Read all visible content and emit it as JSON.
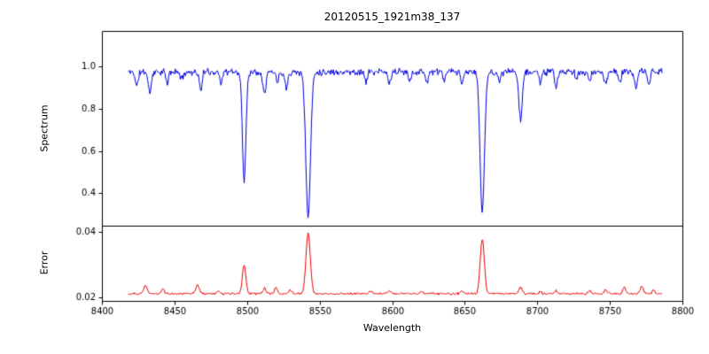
{
  "figure": {
    "title": "20120515_1921m38_137",
    "xlabel": "Wavelength",
    "background": "#ffffff"
  },
  "chart_data": {
    "type": "line",
    "title": "20120515_1921m38_137",
    "xlabel": "Wavelength",
    "x_range": [
      8400,
      8800
    ],
    "x_ticks": [
      8400,
      8450,
      8500,
      8550,
      8600,
      8650,
      8700,
      8750,
      8800
    ],
    "x_tick_labels": [
      "8400",
      "8450",
      "8500",
      "8550",
      "8600",
      "8650",
      "8700",
      "8750",
      "8800"
    ],
    "grid": false,
    "legend": "none",
    "subplots": [
      {
        "name": "spectrum",
        "ylabel": "Spectrum",
        "ylim": [
          0.245,
          1.17
        ],
        "y_ticks": [
          0.4,
          0.6,
          0.8,
          1.0
        ],
        "y_tick_labels": [
          "0.4",
          "0.6",
          "0.8",
          "1.0"
        ],
        "color": "#0000dd",
        "series": {
          "description": "Normalized stellar spectrum: continuum near 0.97 with noise; Ca II triplet absorption lines at 8498, 8542, 8662 plus weaker lines",
          "x_start": 8418,
          "x_end": 8786,
          "step": 0.5,
          "baseline": 0.975,
          "noise_amp": 0.02,
          "seed": 11,
          "features": [
            {
              "center": 8498.0,
              "amp": -0.52,
              "sigma": 1.2
            },
            {
              "center": 8542.1,
              "amp": -0.69,
              "sigma": 1.6
            },
            {
              "center": 8662.1,
              "amp": -0.67,
              "sigma": 1.5
            },
            {
              "center": 8688.5,
              "amp": -0.22,
              "sigma": 1.2
            },
            {
              "center": 8424.0,
              "amp": -0.07,
              "sigma": 0.9
            },
            {
              "center": 8433.0,
              "amp": -0.1,
              "sigma": 1.0
            },
            {
              "center": 8445.0,
              "amp": -0.06,
              "sigma": 0.8
            },
            {
              "center": 8455.0,
              "amp": -0.04,
              "sigma": 0.8
            },
            {
              "center": 8468.0,
              "amp": -0.09,
              "sigma": 0.9
            },
            {
              "center": 8482.0,
              "amp": -0.05,
              "sigma": 0.8
            },
            {
              "center": 8512.0,
              "amp": -0.1,
              "sigma": 1.0
            },
            {
              "center": 8521.0,
              "amp": -0.05,
              "sigma": 0.8
            },
            {
              "center": 8527.0,
              "amp": -0.08,
              "sigma": 0.9
            },
            {
              "center": 8582.0,
              "amp": -0.05,
              "sigma": 0.8
            },
            {
              "center": 8598.0,
              "amp": -0.06,
              "sigma": 0.9
            },
            {
              "center": 8612.0,
              "amp": -0.04,
              "sigma": 0.8
            },
            {
              "center": 8624.0,
              "amp": -0.05,
              "sigma": 0.8
            },
            {
              "center": 8636.0,
              "amp": -0.04,
              "sigma": 0.8
            },
            {
              "center": 8648.0,
              "amp": -0.06,
              "sigma": 0.9
            },
            {
              "center": 8674.0,
              "amp": -0.05,
              "sigma": 0.8
            },
            {
              "center": 8702.0,
              "amp": -0.05,
              "sigma": 0.8
            },
            {
              "center": 8713.0,
              "amp": -0.07,
              "sigma": 0.9
            },
            {
              "center": 8727.0,
              "amp": -0.04,
              "sigma": 0.8
            },
            {
              "center": 8736.0,
              "amp": -0.05,
              "sigma": 0.8
            },
            {
              "center": 8747.0,
              "amp": -0.06,
              "sigma": 0.9
            },
            {
              "center": 8757.0,
              "amp": -0.05,
              "sigma": 0.8
            },
            {
              "center": 8768.0,
              "amp": -0.08,
              "sigma": 0.9
            },
            {
              "center": 8777.0,
              "amp": -0.06,
              "sigma": 0.8
            }
          ]
        }
      },
      {
        "name": "error",
        "ylabel": "Error",
        "ylim": [
          0.019,
          0.042
        ],
        "y_ticks": [
          0.02,
          0.04
        ],
        "y_tick_labels": [
          "0.02",
          "0.04"
        ],
        "color": "#ee0000",
        "series": {
          "description": "Error spectrum: baseline near 0.021 with spikes at the absorption-line wavelengths",
          "x_start": 8418,
          "x_end": 8786,
          "step": 0.5,
          "baseline": 0.0212,
          "noise_amp": 0.0004,
          "seed": 29,
          "features": [
            {
              "center": 8498.0,
              "amp": 0.009,
              "sigma": 1.2
            },
            {
              "center": 8542.1,
              "amp": 0.0185,
              "sigma": 1.5
            },
            {
              "center": 8662.1,
              "amp": 0.0168,
              "sigma": 1.4
            },
            {
              "center": 8430.0,
              "amp": 0.0026,
              "sigma": 1.2
            },
            {
              "center": 8442.0,
              "amp": 0.0014,
              "sigma": 1.0
            },
            {
              "center": 8466.0,
              "amp": 0.0026,
              "sigma": 1.2
            },
            {
              "center": 8480.0,
              "amp": 0.001,
              "sigma": 1.0
            },
            {
              "center": 8512.0,
              "amp": 0.0016,
              "sigma": 1.0
            },
            {
              "center": 8520.0,
              "amp": 0.002,
              "sigma": 1.0
            },
            {
              "center": 8530.0,
              "amp": 0.0012,
              "sigma": 0.9
            },
            {
              "center": 8585.0,
              "amp": 0.0008,
              "sigma": 1.0
            },
            {
              "center": 8598.0,
              "amp": 0.001,
              "sigma": 1.0
            },
            {
              "center": 8620.0,
              "amp": 0.0007,
              "sigma": 1.0
            },
            {
              "center": 8648.0,
              "amp": 0.0009,
              "sigma": 1.0
            },
            {
              "center": 8688.5,
              "amp": 0.002,
              "sigma": 1.1
            },
            {
              "center": 8702.0,
              "amp": 0.0008,
              "sigma": 0.9
            },
            {
              "center": 8713.0,
              "amp": 0.001,
              "sigma": 1.0
            },
            {
              "center": 8736.0,
              "amp": 0.0009,
              "sigma": 1.0
            },
            {
              "center": 8747.0,
              "amp": 0.0012,
              "sigma": 1.0
            },
            {
              "center": 8760.0,
              "amp": 0.0018,
              "sigma": 1.0
            },
            {
              "center": 8772.0,
              "amp": 0.0022,
              "sigma": 1.1
            },
            {
              "center": 8780.0,
              "amp": 0.0012,
              "sigma": 0.9
            }
          ]
        }
      }
    ]
  }
}
